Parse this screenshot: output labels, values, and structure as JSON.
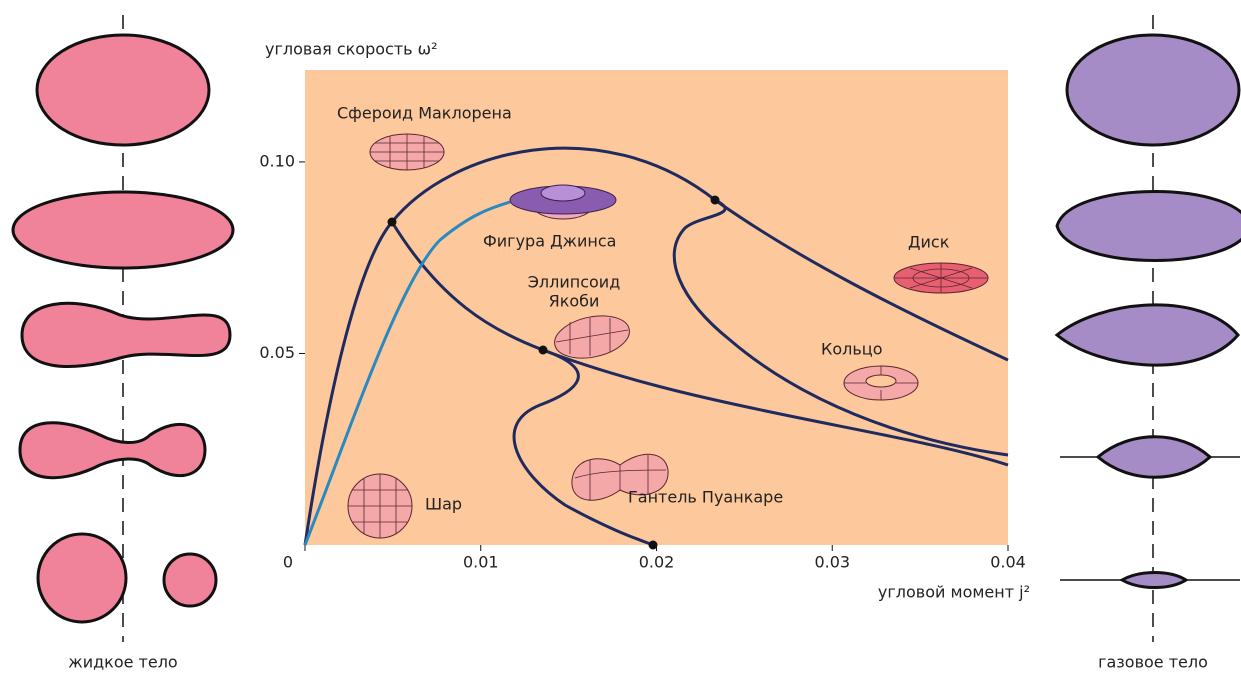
{
  "diagram": {
    "y_label": "угловая скорость ω²",
    "x_label": "угловой момент j²",
    "xlim": [
      0,
      0.04
    ],
    "ylim": [
      0,
      0.124
    ],
    "xticks": [
      0,
      0.01,
      0.02,
      0.03,
      0.04
    ],
    "yticks": [
      0.05,
      {
        "value": 0.1,
        "label": "0.10"
      }
    ],
    "labels": {
      "maclaurin": "Сфероид Маклорена",
      "jeans": "Фигура Джинса",
      "jacobi": [
        "Эллипсоид",
        "Якоби"
      ],
      "disk": "Диск",
      "ring": "Кольцо",
      "sphere": "Шар",
      "poincare": "Гантель Пуанкаре"
    },
    "left_caption": "жидкое тело",
    "right_caption": "газовое тело"
  }
}
